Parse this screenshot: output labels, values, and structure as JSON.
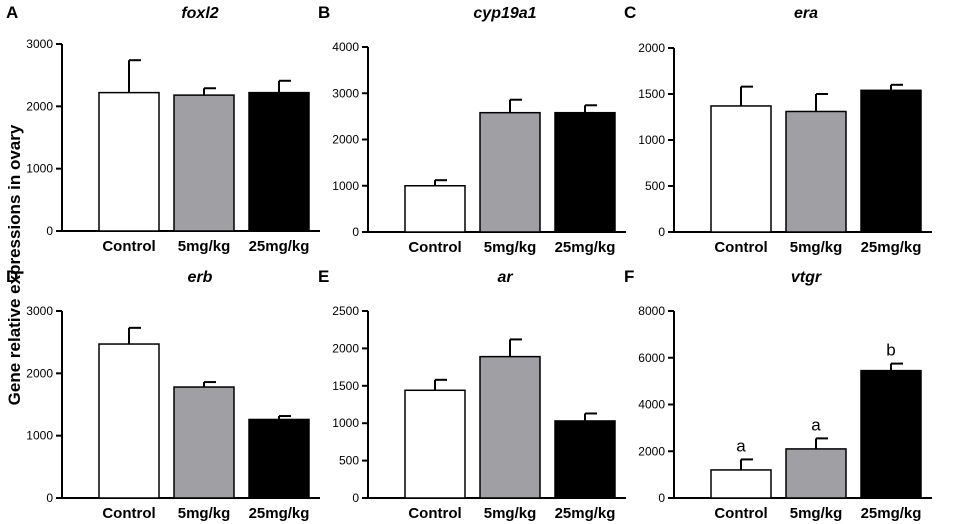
{
  "figure": {
    "ylabel": "Gene relative expressions in ovary",
    "colors": {
      "Control": "#ffffff",
      "5mg/kg": "#a0a0a4",
      "25mg/kg": "#000000"
    }
  },
  "chart_data": [
    {
      "type": "bar",
      "panel": "A",
      "title": "foxl2",
      "categories": [
        "Control",
        "5mg/kg",
        "25mg/kg"
      ],
      "values": [
        2220,
        2180,
        2220
      ],
      "errors": [
        520,
        110,
        190
      ],
      "ylim": [
        0,
        3000
      ],
      "yticks": [
        0,
        1000,
        2000,
        3000
      ],
      "annotations": []
    },
    {
      "type": "bar",
      "panel": "B",
      "title": "cyp19a1",
      "categories": [
        "Control",
        "5mg/kg",
        "25mg/kg"
      ],
      "values": [
        1000,
        2580,
        2580
      ],
      "errors": [
        120,
        280,
        160
      ],
      "ylim": [
        0,
        4000
      ],
      "yticks": [
        0,
        1000,
        2000,
        3000,
        4000
      ],
      "annotations": []
    },
    {
      "type": "bar",
      "panel": "C",
      "title": "era",
      "categories": [
        "Control",
        "5mg/kg",
        "25mg/kg"
      ],
      "values": [
        1370,
        1310,
        1540
      ],
      "errors": [
        210,
        190,
        60
      ],
      "ylim": [
        0,
        2000
      ],
      "yticks": [
        0,
        500,
        1000,
        1500,
        2000
      ],
      "annotations": []
    },
    {
      "type": "bar",
      "panel": "D",
      "title": "erb",
      "categories": [
        "Control",
        "5mg/kg",
        "25mg/kg"
      ],
      "values": [
        2470,
        1780,
        1260
      ],
      "errors": [
        260,
        80,
        55
      ],
      "ylim": [
        0,
        3000
      ],
      "yticks": [
        0,
        1000,
        2000,
        3000
      ],
      "annotations": []
    },
    {
      "type": "bar",
      "panel": "E",
      "title": "ar",
      "categories": [
        "Control",
        "5mg/kg",
        "25mg/kg"
      ],
      "values": [
        1440,
        1890,
        1030
      ],
      "errors": [
        140,
        230,
        100
      ],
      "ylim": [
        0,
        2500
      ],
      "yticks": [
        0,
        500,
        1000,
        1500,
        2000,
        2500
      ],
      "annotations": []
    },
    {
      "type": "bar",
      "panel": "F",
      "title": "vtgr",
      "categories": [
        "Control",
        "5mg/kg",
        "25mg/kg"
      ],
      "values": [
        1200,
        2100,
        5450
      ],
      "errors": [
        450,
        450,
        300
      ],
      "ylim": [
        0,
        8000
      ],
      "yticks": [
        0,
        2000,
        4000,
        6000,
        8000
      ],
      "annotations": [
        "a",
        "a",
        "b"
      ]
    }
  ]
}
